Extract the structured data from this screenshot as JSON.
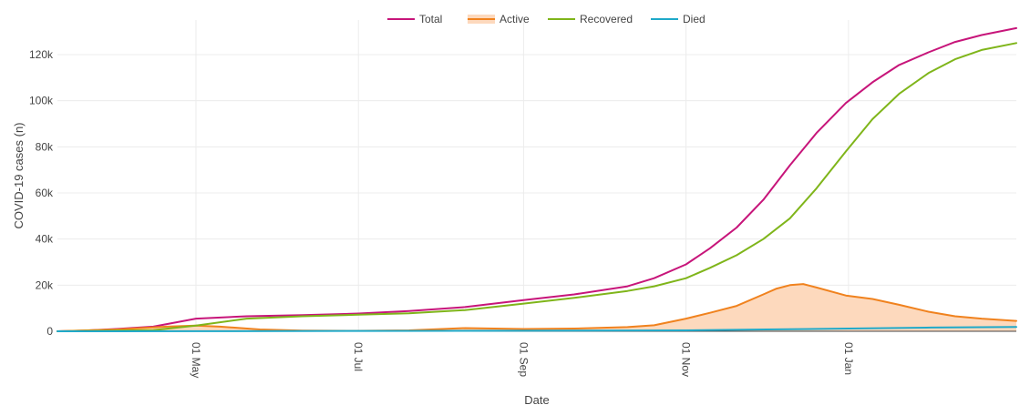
{
  "chart_data": {
    "type": "line",
    "xlabel": "Date",
    "ylabel": "COVID-19 cases (n)",
    "ylim": [
      0,
      135000
    ],
    "xlim": [
      "2020-03-10",
      "2021-03-05"
    ],
    "grid": true,
    "legend_position": "top",
    "x_ticks": [
      {
        "date": "2020-05-01",
        "label": "01 May"
      },
      {
        "date": "2020-07-01",
        "label": "01 Jul"
      },
      {
        "date": "2020-09-01",
        "label": "01 Sep"
      },
      {
        "date": "2020-11-01",
        "label": "01 Nov"
      },
      {
        "date": "2021-01-01",
        "label": "01 Jan"
      }
    ],
    "y_ticks": [
      {
        "value": 0,
        "label": "0"
      },
      {
        "value": 20000,
        "label": "20k"
      },
      {
        "value": 40000,
        "label": "40k"
      },
      {
        "value": 60000,
        "label": "60k"
      },
      {
        "value": 80000,
        "label": "80k"
      },
      {
        "value": 100000,
        "label": "100k"
      },
      {
        "value": 120000,
        "label": "120k"
      }
    ],
    "series": [
      {
        "name": "Total",
        "color": "#c7157a",
        "fill": false,
        "points": [
          [
            "2020-03-10",
            0
          ],
          [
            "2020-03-20",
            300
          ],
          [
            "2020-04-01",
            1000
          ],
          [
            "2020-04-15",
            2000
          ],
          [
            "2020-05-01",
            5500
          ],
          [
            "2020-05-20",
            6500
          ],
          [
            "2020-06-10",
            7000
          ],
          [
            "2020-07-01",
            7700
          ],
          [
            "2020-07-20",
            8800
          ],
          [
            "2020-08-10",
            10500
          ],
          [
            "2020-09-01",
            13500
          ],
          [
            "2020-09-20",
            16000
          ],
          [
            "2020-10-10",
            19500
          ],
          [
            "2020-10-20",
            23000
          ],
          [
            "2020-11-01",
            29000
          ],
          [
            "2020-11-10",
            36000
          ],
          [
            "2020-11-20",
            45000
          ],
          [
            "2020-11-30",
            57000
          ],
          [
            "2020-12-10",
            72000
          ],
          [
            "2020-12-20",
            86000
          ],
          [
            "2020-12-31",
            99000
          ],
          [
            "2021-01-10",
            108000
          ],
          [
            "2021-01-20",
            115500
          ],
          [
            "2021-01-31",
            121000
          ],
          [
            "2021-02-10",
            125500
          ],
          [
            "2021-02-20",
            128500
          ],
          [
            "2021-03-05",
            131500
          ]
        ]
      },
      {
        "name": "Active",
        "color": "#f0821e",
        "fill": true,
        "fill_color": "#fdd9bd",
        "points": [
          [
            "2020-03-10",
            0
          ],
          [
            "2020-04-01",
            800
          ],
          [
            "2020-04-20",
            2000
          ],
          [
            "2020-05-01",
            2500
          ],
          [
            "2020-05-10",
            2000
          ],
          [
            "2020-05-25",
            800
          ],
          [
            "2020-06-10",
            300
          ],
          [
            "2020-07-01",
            200
          ],
          [
            "2020-07-20",
            400
          ],
          [
            "2020-08-10",
            1400
          ],
          [
            "2020-09-01",
            1000
          ],
          [
            "2020-09-20",
            1200
          ],
          [
            "2020-10-10",
            1800
          ],
          [
            "2020-10-20",
            2600
          ],
          [
            "2020-11-01",
            5500
          ],
          [
            "2020-11-10",
            8000
          ],
          [
            "2020-11-20",
            11000
          ],
          [
            "2020-11-30",
            16000
          ],
          [
            "2020-12-05",
            18500
          ],
          [
            "2020-12-10",
            20000
          ],
          [
            "2020-12-15",
            20500
          ],
          [
            "2020-12-20",
            19000
          ],
          [
            "2020-12-31",
            15500
          ],
          [
            "2021-01-10",
            14000
          ],
          [
            "2021-01-20",
            11500
          ],
          [
            "2021-01-31",
            8500
          ],
          [
            "2021-02-10",
            6500
          ],
          [
            "2021-02-20",
            5500
          ],
          [
            "2021-03-05",
            4500
          ]
        ]
      },
      {
        "name": "Recovered",
        "color": "#7fb51a",
        "fill": false,
        "points": [
          [
            "2020-03-10",
            0
          ],
          [
            "2020-04-15",
            500
          ],
          [
            "2020-05-01",
            2500
          ],
          [
            "2020-05-20",
            5500
          ],
          [
            "2020-06-10",
            6500
          ],
          [
            "2020-07-01",
            7200
          ],
          [
            "2020-07-20",
            7800
          ],
          [
            "2020-08-10",
            9200
          ],
          [
            "2020-09-01",
            12000
          ],
          [
            "2020-09-20",
            14500
          ],
          [
            "2020-10-10",
            17500
          ],
          [
            "2020-10-20",
            19500
          ],
          [
            "2020-11-01",
            23000
          ],
          [
            "2020-11-10",
            27500
          ],
          [
            "2020-11-20",
            33000
          ],
          [
            "2020-11-30",
            40000
          ],
          [
            "2020-12-10",
            49000
          ],
          [
            "2020-12-20",
            62000
          ],
          [
            "2020-12-31",
            78000
          ],
          [
            "2021-01-10",
            92000
          ],
          [
            "2021-01-20",
            103000
          ],
          [
            "2021-01-31",
            112000
          ],
          [
            "2021-02-10",
            118000
          ],
          [
            "2021-02-20",
            122000
          ],
          [
            "2021-03-05",
            125000
          ]
        ]
      },
      {
        "name": "Died",
        "color": "#1fa9c9",
        "fill": false,
        "points": [
          [
            "2020-03-10",
            0
          ],
          [
            "2020-05-01",
            50
          ],
          [
            "2020-07-01",
            150
          ],
          [
            "2020-09-01",
            250
          ],
          [
            "2020-11-01",
            400
          ],
          [
            "2020-12-01",
            800
          ],
          [
            "2021-01-01",
            1200
          ],
          [
            "2021-02-01",
            1600
          ],
          [
            "2021-03-05",
            1900
          ]
        ]
      }
    ]
  }
}
